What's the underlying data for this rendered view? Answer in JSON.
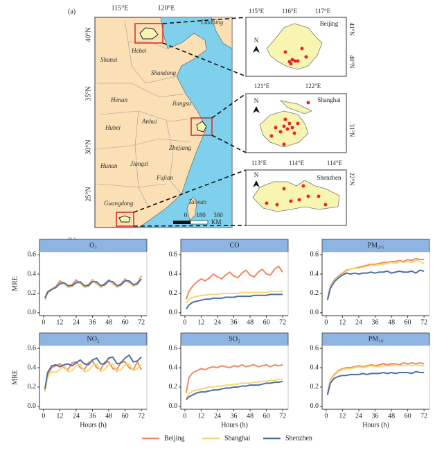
{
  "map": {
    "label": "(a)",
    "lon_ticks": [
      "115°E",
      "120°E"
    ],
    "lat_ticks": [
      "40°N",
      "35°N",
      "30°N",
      "25°N"
    ],
    "provinces": [
      "Liaoning",
      "Hebei",
      "Shanxi",
      "Shandong",
      "Henan",
      "Jiangsu",
      "Anhui",
      "Hubei",
      "Zhejiang",
      "Hunan",
      "Jiangxi",
      "Fujian",
      "Guangdong",
      "Taiwan"
    ],
    "scale": {
      "labels": [
        "0",
        "180",
        "360"
      ],
      "unit": "KM"
    },
    "north": "N",
    "insets": [
      {
        "name": "Beijing",
        "lon_ticks": [
          "115°E",
          "116°E",
          "117°E"
        ],
        "lat_ticks": [
          "41°N",
          "40°N"
        ]
      },
      {
        "name": "Shanghai",
        "lon_ticks": [
          "121°E",
          "122°E"
        ],
        "lat_ticks": [
          "31°N"
        ]
      },
      {
        "name": "Shenzhen",
        "lon_ticks": [
          "113°E",
          "114°E",
          "114°E"
        ],
        "lat_ticks": [
          "22°N"
        ]
      }
    ]
  },
  "panel_b_label": "(b)",
  "legend": [
    {
      "name": "Beijing",
      "color": "#f0875f"
    },
    {
      "name": "Shanghai",
      "color": "#f7d86b"
    },
    {
      "name": "Shenzhen",
      "color": "#4a6ea9"
    }
  ],
  "chart_data": [
    {
      "type": "line",
      "title": "O₃",
      "ylabel": "MRE",
      "x": [
        1,
        3,
        6,
        9,
        12,
        15,
        18,
        21,
        24,
        27,
        30,
        33,
        36,
        39,
        42,
        45,
        48,
        51,
        54,
        57,
        60,
        63,
        66,
        69,
        72
      ],
      "xlim": [
        -3,
        76
      ],
      "xticks": [
        0,
        12,
        24,
        36,
        48,
        60,
        72
      ],
      "ylim": [
        -0.03,
        0.63
      ],
      "yticks": [
        {
          "value": 0,
          "label": "0.0"
        },
        {
          "value": 0.2,
          "label": "0.2"
        },
        {
          "value": 0.4,
          "label": "0.4"
        },
        {
          "value": 0.6,
          "label": "0.6"
        }
      ],
      "series": [
        {
          "values": [
            0.15,
            0.22,
            0.25,
            0.27,
            0.33,
            0.3,
            0.27,
            0.29,
            0.34,
            0.3,
            0.27,
            0.29,
            0.34,
            0.3,
            0.27,
            0.3,
            0.34,
            0.3,
            0.27,
            0.3,
            0.35,
            0.31,
            0.28,
            0.31,
            0.38
          ]
        },
        {
          "values": [
            0.13,
            0.21,
            0.25,
            0.26,
            0.31,
            0.3,
            0.26,
            0.27,
            0.32,
            0.3,
            0.26,
            0.27,
            0.33,
            0.31,
            0.26,
            0.28,
            0.33,
            0.31,
            0.26,
            0.28,
            0.34,
            0.32,
            0.27,
            0.29,
            0.37
          ]
        },
        {
          "values": [
            0.15,
            0.21,
            0.24,
            0.26,
            0.3,
            0.31,
            0.28,
            0.28,
            0.31,
            0.32,
            0.28,
            0.28,
            0.32,
            0.32,
            0.28,
            0.29,
            0.33,
            0.32,
            0.28,
            0.29,
            0.33,
            0.33,
            0.29,
            0.3,
            0.35
          ]
        }
      ]
    },
    {
      "type": "line",
      "title": "CO",
      "x": [
        1,
        3,
        6,
        9,
        12,
        15,
        18,
        21,
        24,
        27,
        30,
        33,
        36,
        39,
        42,
        45,
        48,
        51,
        54,
        57,
        60,
        63,
        66,
        69,
        72
      ],
      "xlim": [
        -3,
        76
      ],
      "xticks": [
        0,
        12,
        24,
        36,
        48,
        60,
        72
      ],
      "ylim": [
        -0.03,
        0.63
      ],
      "yticks": [
        {
          "value": 0,
          "label": "0.0"
        },
        {
          "value": 0.2,
          "label": "0.2"
        },
        {
          "value": 0.4,
          "label": "0.4"
        },
        {
          "value": 0.6,
          "label": "0.6"
        }
      ],
      "series": [
        {
          "values": [
            0.14,
            0.22,
            0.28,
            0.32,
            0.35,
            0.33,
            0.36,
            0.4,
            0.37,
            0.35,
            0.39,
            0.42,
            0.38,
            0.36,
            0.41,
            0.44,
            0.39,
            0.37,
            0.42,
            0.45,
            0.4,
            0.39,
            0.45,
            0.48,
            0.42
          ]
        },
        {
          "values": [
            0.1,
            0.14,
            0.16,
            0.17,
            0.18,
            0.18,
            0.19,
            0.19,
            0.19,
            0.2,
            0.2,
            0.2,
            0.2,
            0.2,
            0.21,
            0.21,
            0.21,
            0.21,
            0.21,
            0.21,
            0.21,
            0.22,
            0.22,
            0.22,
            0.22
          ]
        },
        {
          "values": [
            0.04,
            0.08,
            0.11,
            0.12,
            0.13,
            0.14,
            0.14,
            0.15,
            0.15,
            0.15,
            0.16,
            0.16,
            0.16,
            0.17,
            0.17,
            0.17,
            0.17,
            0.18,
            0.18,
            0.18,
            0.18,
            0.19,
            0.19,
            0.19,
            0.19
          ]
        }
      ]
    },
    {
      "type": "line",
      "title": "PM₂.₅",
      "x": [
        1,
        3,
        6,
        9,
        12,
        15,
        18,
        21,
        24,
        27,
        30,
        33,
        36,
        39,
        42,
        45,
        48,
        51,
        54,
        57,
        60,
        63,
        66,
        69,
        72
      ],
      "xlim": [
        -3,
        76
      ],
      "xticks": [
        0,
        12,
        24,
        36,
        48,
        60,
        72
      ],
      "ylim": [
        -0.03,
        0.63
      ],
      "yticks": [
        {
          "value": 0,
          "label": "0.0"
        },
        {
          "value": 0.2,
          "label": "0.2"
        },
        {
          "value": 0.4,
          "label": "0.4"
        },
        {
          "value": 0.6,
          "label": "0.6"
        }
      ],
      "series": [
        {
          "values": [
            0.14,
            0.27,
            0.34,
            0.38,
            0.41,
            0.44,
            0.45,
            0.46,
            0.47,
            0.48,
            0.49,
            0.5,
            0.5,
            0.51,
            0.52,
            0.52,
            0.53,
            0.53,
            0.54,
            0.53,
            0.55,
            0.54,
            0.56,
            0.55,
            0.55
          ]
        },
        {
          "values": [
            0.13,
            0.26,
            0.33,
            0.37,
            0.4,
            0.43,
            0.45,
            0.46,
            0.46,
            0.47,
            0.48,
            0.49,
            0.49,
            0.5,
            0.5,
            0.51,
            0.52,
            0.51,
            0.53,
            0.52,
            0.53,
            0.52,
            0.54,
            0.53,
            0.51
          ]
        },
        {
          "values": [
            0.13,
            0.25,
            0.32,
            0.36,
            0.39,
            0.41,
            0.4,
            0.41,
            0.4,
            0.41,
            0.41,
            0.42,
            0.41,
            0.42,
            0.42,
            0.43,
            0.41,
            0.42,
            0.43,
            0.42,
            0.42,
            0.43,
            0.41,
            0.44,
            0.43
          ]
        }
      ]
    },
    {
      "type": "line",
      "title": "NO₂",
      "ylabel": "MRE",
      "xlabel": "Hours (h)",
      "x": [
        1,
        3,
        6,
        9,
        12,
        15,
        18,
        21,
        24,
        27,
        30,
        33,
        36,
        39,
        42,
        45,
        48,
        51,
        54,
        57,
        60,
        63,
        66,
        69,
        72
      ],
      "xlim": [
        -3,
        76
      ],
      "xticks": [
        0,
        12,
        24,
        36,
        48,
        60,
        72
      ],
      "ylim": [
        -0.03,
        0.63
      ],
      "yticks": [
        {
          "value": 0,
          "label": "0.0"
        },
        {
          "value": 0.2,
          "label": "0.2"
        },
        {
          "value": 0.4,
          "label": "0.4"
        },
        {
          "value": 0.6,
          "label": "0.6"
        }
      ],
      "series": [
        {
          "values": [
            0.17,
            0.33,
            0.4,
            0.42,
            0.44,
            0.4,
            0.38,
            0.45,
            0.46,
            0.4,
            0.38,
            0.45,
            0.47,
            0.4,
            0.38,
            0.46,
            0.46,
            0.39,
            0.38,
            0.46,
            0.46,
            0.4,
            0.38,
            0.46,
            0.38
          ]
        },
        {
          "values": [
            0.15,
            0.3,
            0.36,
            0.35,
            0.38,
            0.42,
            0.36,
            0.37,
            0.42,
            0.44,
            0.36,
            0.37,
            0.42,
            0.44,
            0.36,
            0.38,
            0.43,
            0.44,
            0.36,
            0.38,
            0.43,
            0.44,
            0.37,
            0.39,
            0.43
          ]
        },
        {
          "values": [
            0.18,
            0.35,
            0.42,
            0.43,
            0.41,
            0.43,
            0.44,
            0.42,
            0.45,
            0.48,
            0.44,
            0.43,
            0.48,
            0.5,
            0.44,
            0.44,
            0.5,
            0.51,
            0.44,
            0.45,
            0.5,
            0.53,
            0.46,
            0.47,
            0.51
          ]
        }
      ]
    },
    {
      "type": "line",
      "title": "SO₂",
      "xlabel": "Hours (h)",
      "x": [
        1,
        3,
        6,
        9,
        12,
        15,
        18,
        21,
        24,
        27,
        30,
        33,
        36,
        39,
        42,
        45,
        48,
        51,
        54,
        57,
        60,
        63,
        66,
        69,
        72
      ],
      "xlim": [
        -3,
        76
      ],
      "xticks": [
        0,
        12,
        24,
        36,
        48,
        60,
        72
      ],
      "ylim": [
        -0.03,
        0.63
      ],
      "yticks": [
        {
          "value": 0,
          "label": "0.0"
        },
        {
          "value": 0.2,
          "label": "0.2"
        },
        {
          "value": 0.4,
          "label": "0.4"
        },
        {
          "value": 0.6,
          "label": "0.6"
        }
      ],
      "series": [
        {
          "values": [
            0.14,
            0.3,
            0.35,
            0.37,
            0.39,
            0.38,
            0.4,
            0.41,
            0.4,
            0.42,
            0.41,
            0.4,
            0.42,
            0.41,
            0.43,
            0.41,
            0.42,
            0.43,
            0.41,
            0.42,
            0.43,
            0.41,
            0.43,
            0.42,
            0.43
          ]
        },
        {
          "values": [
            0.09,
            0.13,
            0.16,
            0.17,
            0.18,
            0.19,
            0.2,
            0.2,
            0.21,
            0.21,
            0.22,
            0.22,
            0.23,
            0.23,
            0.24,
            0.24,
            0.24,
            0.25,
            0.25,
            0.26,
            0.26,
            0.27,
            0.27,
            0.28,
            0.28
          ]
        },
        {
          "values": [
            0.07,
            0.1,
            0.12,
            0.14,
            0.15,
            0.15,
            0.16,
            0.17,
            0.17,
            0.18,
            0.19,
            0.19,
            0.2,
            0.2,
            0.21,
            0.21,
            0.22,
            0.22,
            0.22,
            0.23,
            0.24,
            0.24,
            0.25,
            0.25,
            0.26
          ]
        }
      ]
    },
    {
      "type": "line",
      "title": "PM₁₀",
      "xlabel": "Hours (h)",
      "x": [
        1,
        3,
        6,
        9,
        12,
        15,
        18,
        21,
        24,
        27,
        30,
        33,
        36,
        39,
        42,
        45,
        48,
        51,
        54,
        57,
        60,
        63,
        66,
        69,
        72
      ],
      "xlim": [
        -3,
        76
      ],
      "xticks": [
        0,
        12,
        24,
        36,
        48,
        60,
        72
      ],
      "ylim": [
        -0.03,
        0.63
      ],
      "yticks": [
        {
          "value": 0,
          "label": "0.0"
        },
        {
          "value": 0.2,
          "label": "0.2"
        },
        {
          "value": 0.4,
          "label": "0.4"
        },
        {
          "value": 0.6,
          "label": "0.6"
        }
      ],
      "series": [
        {
          "values": [
            0.13,
            0.27,
            0.33,
            0.37,
            0.39,
            0.4,
            0.4,
            0.41,
            0.42,
            0.41,
            0.42,
            0.43,
            0.42,
            0.43,
            0.44,
            0.43,
            0.44,
            0.44,
            0.43,
            0.45,
            0.44,
            0.45,
            0.44,
            0.45,
            0.44
          ]
        },
        {
          "values": [
            0.12,
            0.26,
            0.32,
            0.36,
            0.38,
            0.39,
            0.39,
            0.4,
            0.41,
            0.4,
            0.41,
            0.42,
            0.41,
            0.41,
            0.42,
            0.42,
            0.42,
            0.43,
            0.42,
            0.42,
            0.43,
            0.42,
            0.43,
            0.42,
            0.42
          ]
        },
        {
          "values": [
            0.12,
            0.24,
            0.29,
            0.31,
            0.32,
            0.32,
            0.33,
            0.33,
            0.33,
            0.34,
            0.33,
            0.34,
            0.34,
            0.34,
            0.35,
            0.34,
            0.35,
            0.34,
            0.35,
            0.35,
            0.35,
            0.34,
            0.36,
            0.35,
            0.35
          ]
        }
      ]
    }
  ]
}
